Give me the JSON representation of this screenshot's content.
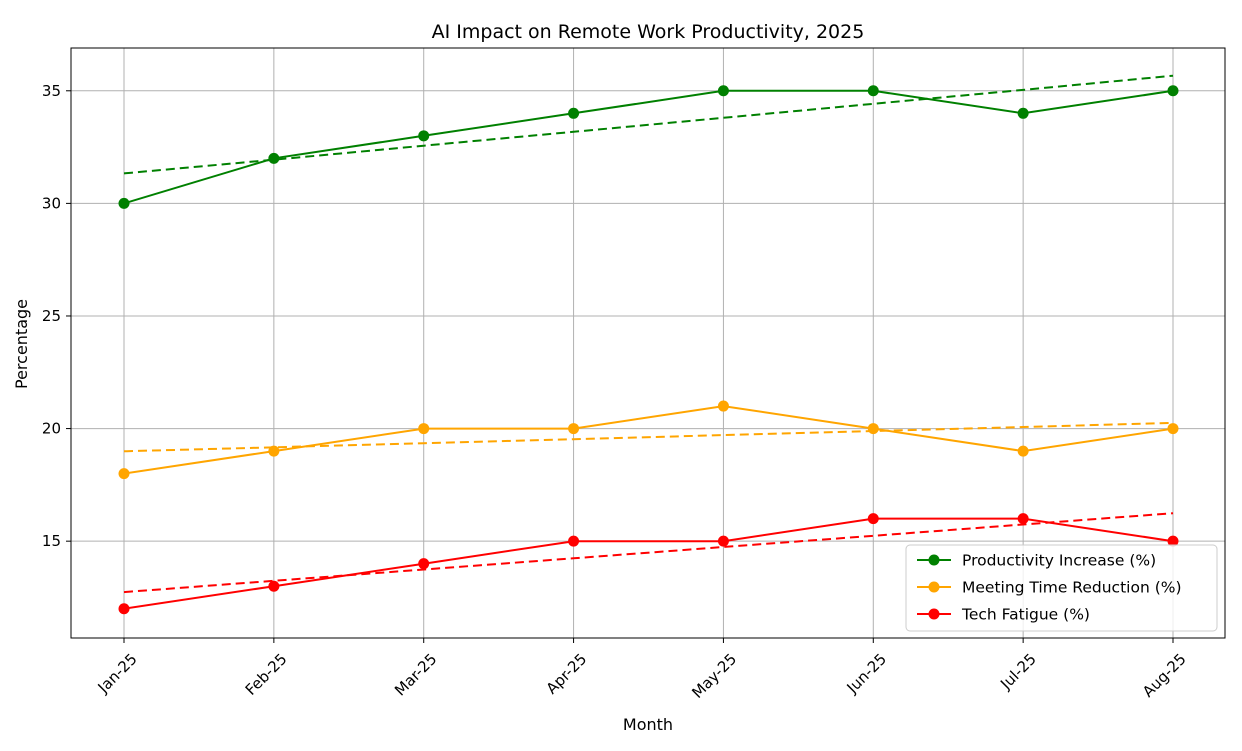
{
  "chart_data": {
    "type": "line",
    "title": "AI Impact on Remote Work Productivity, 2025",
    "xlabel": "Month",
    "ylabel": "Percentage",
    "categories": [
      "Jan-25",
      "Feb-25",
      "Mar-25",
      "Apr-25",
      "May-25",
      "Jun-25",
      "Jul-25",
      "Aug-25"
    ],
    "ylim": [
      10.7,
      36.9
    ],
    "yticks": [
      15,
      20,
      25,
      30,
      35
    ],
    "grid": true,
    "legend_position": "lower-right",
    "series": [
      {
        "name": "Productivity Increase (%)",
        "color": "#008000",
        "marker": "circle",
        "values": [
          30,
          32,
          33,
          34,
          35,
          35,
          34,
          35
        ],
        "trend": [
          31.33,
          31.94,
          32.56,
          33.18,
          33.8,
          34.42,
          35.04,
          35.67
        ]
      },
      {
        "name": "Meeting Time Reduction (%)",
        "color": "#ffa500",
        "marker": "circle",
        "values": [
          18,
          19,
          20,
          20,
          21,
          20,
          19,
          20
        ],
        "trend": [
          18.99,
          19.17,
          19.35,
          19.53,
          19.71,
          19.89,
          20.07,
          20.25
        ]
      },
      {
        "name": "Tech Fatigue (%)",
        "color": "#ff0000",
        "marker": "circle",
        "values": [
          12,
          13,
          14,
          15,
          15,
          16,
          16,
          15
        ],
        "trend": [
          12.74,
          13.24,
          13.74,
          14.24,
          14.74,
          15.24,
          15.74,
          16.24
        ]
      }
    ]
  }
}
